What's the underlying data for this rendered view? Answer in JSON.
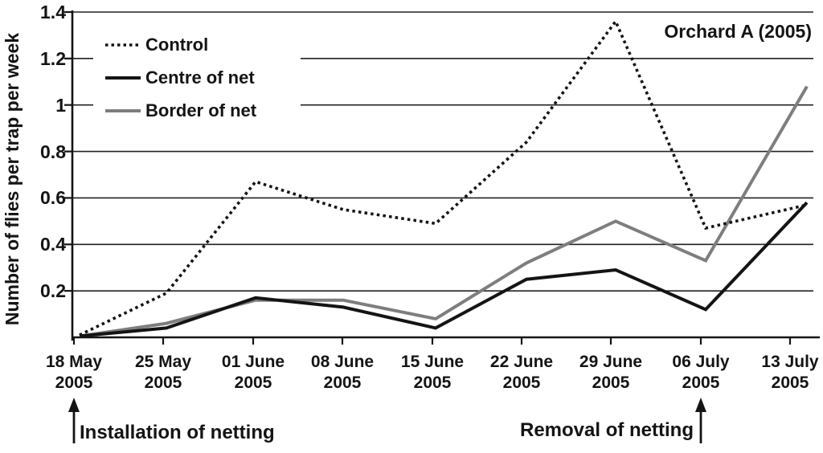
{
  "figure": {
    "background": "#ffffff",
    "text_color": "#141414"
  },
  "chart_data": {
    "type": "line",
    "title": "Orchard A (2005)",
    "title_position": "top-right-inside",
    "xlabel": "",
    "ylabel": "Number of flies per trap per week",
    "ylim": [
      0,
      1.4
    ],
    "y_ticks": [
      0.2,
      0.4,
      0.6,
      0.8,
      1.0,
      1.2,
      1.4
    ],
    "y_tick_labels": [
      "0.2",
      "0.4",
      "0.6",
      "0.8",
      "1",
      "1.2",
      "1.4"
    ],
    "grid": "horizontal",
    "legend_position": "top-left-inside",
    "categories": [
      {
        "date": "18 May",
        "year": "2005"
      },
      {
        "date": "25 May",
        "year": "2005"
      },
      {
        "date": "01 June",
        "year": "2005"
      },
      {
        "date": "08 June",
        "year": "2005"
      },
      {
        "date": "15 June",
        "year": "2005"
      },
      {
        "date": "22 June",
        "year": "2005"
      },
      {
        "date": "29 June",
        "year": "2005"
      },
      {
        "date": "06 July",
        "year": "2005"
      },
      {
        "date": "13 July",
        "year": "2005"
      }
    ],
    "series": [
      {
        "name": "Border of net",
        "style": "solid",
        "color": "#7e7e7e",
        "width": 4,
        "values": [
          0.0,
          0.06,
          0.16,
          0.16,
          0.08,
          0.32,
          0.5,
          0.33,
          1.08
        ]
      },
      {
        "name": "Centre of net",
        "style": "solid",
        "color": "#141414",
        "width": 4,
        "values": [
          0.0,
          0.04,
          0.17,
          0.13,
          0.04,
          0.25,
          0.29,
          0.12,
          0.58
        ]
      },
      {
        "name": "Control",
        "style": "dotted",
        "color": "#141414",
        "width": 3.6,
        "values": [
          0.01,
          0.19,
          0.67,
          0.55,
          0.49,
          0.84,
          1.36,
          0.47,
          0.57
        ]
      }
    ],
    "legend_order": [
      "Control",
      "Centre of net",
      "Border of net"
    ],
    "annotations": [
      {
        "text": "Installation of netting",
        "category_index": 0,
        "arrow": "up"
      },
      {
        "text": "Removal of netting",
        "category_index": 7,
        "arrow": "up"
      }
    ]
  }
}
